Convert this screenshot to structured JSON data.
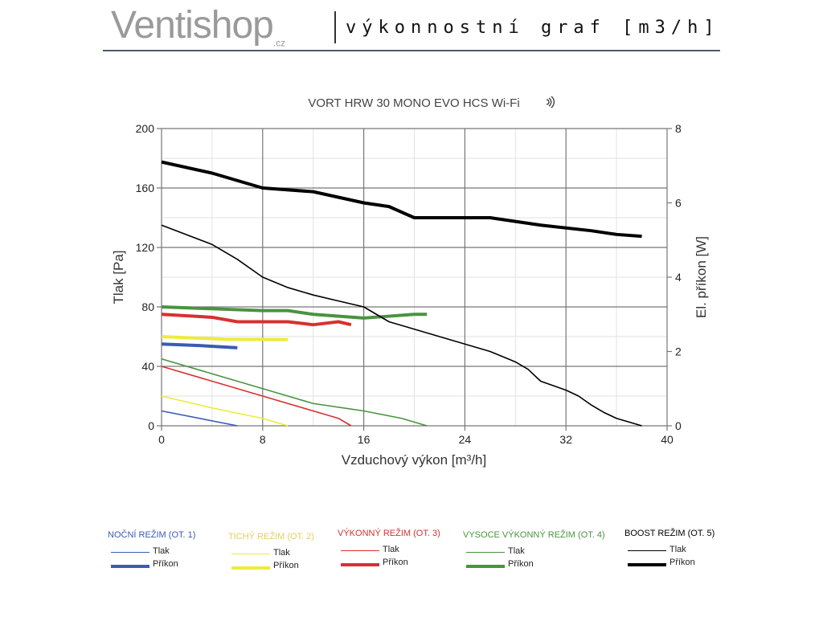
{
  "header": {
    "logo": "Ventishop",
    "logo_suffix": ".cz",
    "subtitle": "výkonnostní graf [m3/h]"
  },
  "chart_data": {
    "type": "line",
    "title": "VORT HRW 30 MONO EVO HCS Wi-Fi",
    "xlabel": "Vzduchový výkon [m³/h]",
    "ylabel": "Tlak [Pa]",
    "y2label": "El. příkon [W]",
    "xlim": [
      0,
      40
    ],
    "ylim": [
      0,
      200
    ],
    "y2lim": [
      0,
      8
    ],
    "xticks": [
      0,
      8,
      16,
      24,
      32,
      40
    ],
    "yticks": [
      0,
      40,
      80,
      120,
      160,
      200
    ],
    "y2ticks": [
      0,
      2,
      4,
      6,
      8
    ],
    "grid": true,
    "legend_position": "bottom",
    "groups": [
      {
        "name": "NOČNÍ REŽIM (OT. 1)",
        "color": "#3a5bb5",
        "tlak": {
          "name": "Tlak",
          "points": [
            [
              0,
              10
            ],
            [
              6,
              0
            ]
          ]
        },
        "prikon": {
          "name": "Příkon",
          "points": [
            [
              0,
              2.2
            ],
            [
              3,
              2.16
            ],
            [
              6,
              2.1
            ]
          ]
        }
      },
      {
        "name": "TICHÝ REŽIM (OT. 2)",
        "color": "#ecec3a",
        "tlak": {
          "name": "Tlak",
          "points": [
            [
              0,
              20
            ],
            [
              4,
              12
            ],
            [
              8,
              5
            ],
            [
              10,
              0
            ]
          ]
        },
        "prikon": {
          "name": "Příkon",
          "points": [
            [
              0,
              2.4
            ],
            [
              5,
              2.33
            ],
            [
              10,
              2.32
            ]
          ]
        }
      },
      {
        "name": "VÝKONNÝ REŽIM (OT. 3)",
        "color": "#d8312f",
        "tlak": {
          "name": "Tlak",
          "points": [
            [
              0,
              40
            ],
            [
              4,
              30
            ],
            [
              8,
              20
            ],
            [
              12,
              10
            ],
            [
              14,
              5
            ],
            [
              15,
              0
            ]
          ]
        },
        "prikon": {
          "name": "Příkon",
          "points": [
            [
              0,
              3.0
            ],
            [
              4,
              2.92
            ],
            [
              6,
              2.8
            ],
            [
              10,
              2.8
            ],
            [
              12,
              2.72
            ],
            [
              14,
              2.8
            ],
            [
              15,
              2.72
            ]
          ]
        }
      },
      {
        "name": "VYSOCE VÝKONNÝ REŽIM (OT. 4)",
        "color": "#4a9340",
        "tlak": {
          "name": "Tlak",
          "points": [
            [
              0,
              45
            ],
            [
              4,
              35
            ],
            [
              8,
              25
            ],
            [
              10,
              20
            ],
            [
              12,
              15
            ],
            [
              16,
              10
            ],
            [
              19,
              5
            ],
            [
              21,
              0
            ]
          ]
        },
        "prikon": {
          "name": "Příkon",
          "points": [
            [
              0,
              3.2
            ],
            [
              4,
              3.15
            ],
            [
              8,
              3.1
            ],
            [
              10,
              3.1
            ],
            [
              12,
              3.0
            ],
            [
              16,
              2.9
            ],
            [
              18,
              2.95
            ],
            [
              20,
              3.0
            ],
            [
              21,
              3.0
            ]
          ]
        }
      },
      {
        "name": "BOOST REŽIM (OT. 5)",
        "color": "#000000",
        "tlak": {
          "name": "Tlak",
          "points": [
            [
              0,
              135
            ],
            [
              4,
              122
            ],
            [
              6,
              112
            ],
            [
              8,
              100
            ],
            [
              10,
              93
            ],
            [
              12,
              88
            ],
            [
              14,
              84
            ],
            [
              16,
              80
            ],
            [
              18,
              70
            ],
            [
              20,
              65
            ],
            [
              22,
              60
            ],
            [
              24,
              55
            ],
            [
              26,
              50
            ],
            [
              28,
              43
            ],
            [
              29,
              38
            ],
            [
              30,
              30
            ],
            [
              32,
              24
            ],
            [
              33,
              20
            ],
            [
              34,
              14
            ],
            [
              35,
              9
            ],
            [
              36,
              5
            ],
            [
              38,
              0
            ]
          ]
        },
        "prikon": {
          "name": "Příkon",
          "points": [
            [
              0,
              7.1
            ],
            [
              4,
              6.8
            ],
            [
              6,
              6.6
            ],
            [
              8,
              6.4
            ],
            [
              12,
              6.3
            ],
            [
              16,
              6.0
            ],
            [
              18,
              5.9
            ],
            [
              20,
              5.6
            ],
            [
              22,
              5.6
            ],
            [
              26,
              5.6
            ],
            [
              28,
              5.5
            ],
            [
              30,
              5.4
            ],
            [
              34,
              5.25
            ],
            [
              36,
              5.15
            ],
            [
              38,
              5.1
            ]
          ]
        }
      }
    ]
  }
}
